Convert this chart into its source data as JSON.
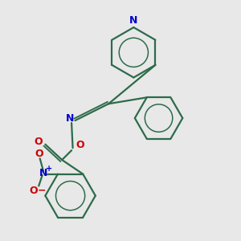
{
  "background_color": "#e8e8e8",
  "bond_color": "#2d6b4a",
  "nitrogen_color": "#0000cc",
  "oxygen_color": "#cc0000",
  "figsize": [
    3.0,
    3.0
  ],
  "dpi": 100,
  "xlim": [
    0,
    10
  ],
  "ylim": [
    0,
    10
  ]
}
